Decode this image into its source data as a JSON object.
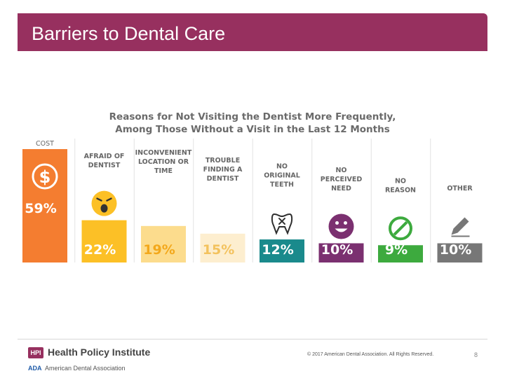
{
  "slide": {
    "title": "Barriers to Dental Care",
    "footer": {
      "institute": "Health Policy Institute",
      "hpi_logo": "HPI",
      "ada_logo": "ADA",
      "ada_name": "American Dental Association",
      "copyright": "© 2017 American Dental Association. All Rights Reserved.",
      "page_number": "8"
    }
  },
  "chart_data": {
    "type": "bar",
    "title": "Reasons for Not Visiting the Dentist More Frequently, Among Those Without a Visit in the Last 12 Months",
    "title_lines": [
      "Reasons for Not Visiting the Dentist More Frequently,",
      "Among Those Without a Visit in the Last 12 Months"
    ],
    "unit": "%",
    "ylim": [
      0,
      59
    ],
    "categories": [
      {
        "label_lines": [
          "COST"
        ],
        "value": 59,
        "value_label": "59%",
        "color": "#f47d30",
        "icon": "dollar-icon"
      },
      {
        "label_lines": [
          "AFRAID OF",
          "DENTIST"
        ],
        "value": 22,
        "value_label": "22%",
        "color": "#fcc026",
        "icon": "afraid-face-icon"
      },
      {
        "label_lines": [
          "INCONVENIENT",
          "LOCATION OR",
          "TIME"
        ],
        "value": 19,
        "value_label": "19%",
        "color": "#fcdc8d",
        "icon": "clock-icon"
      },
      {
        "label_lines": [
          "TROUBLE",
          "FINDING A",
          "DENTIST"
        ],
        "value": 15,
        "value_label": "15%",
        "color": "#fdeecf",
        "icon": "magnifier-icon"
      },
      {
        "label_lines": [
          "NO",
          "ORIGINAL",
          "TEETH"
        ],
        "value": 12,
        "value_label": "12%",
        "color": "#1a8a8c",
        "icon": "tooth-icon"
      },
      {
        "label_lines": [
          "NO",
          "PERCEIVED",
          "NEED"
        ],
        "value": 10,
        "value_label": "10%",
        "color": "#7b3070",
        "icon": "smiley-icon"
      },
      {
        "label_lines": [
          "NO",
          "REASON"
        ],
        "value": 9,
        "value_label": "9%",
        "color": "#3daa3e",
        "icon": "no-sign-icon"
      },
      {
        "label_lines": [
          "OTHER"
        ],
        "value": 10,
        "value_label": "10%",
        "color": "#777777",
        "icon": "pencil-icon"
      }
    ]
  }
}
